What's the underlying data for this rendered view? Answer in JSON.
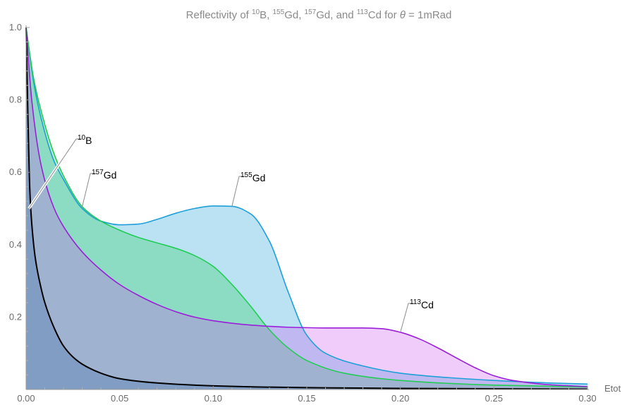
{
  "chart_data": {
    "type": "area",
    "title": {
      "prefix": "Reflectivity of ",
      "b_iso": "10",
      "b_el": "B, ",
      "gd155_iso": "155",
      "gd155_el": "Gd, ",
      "gd157_iso": "157",
      "gd157_el": "Gd, and ",
      "cd_iso": "113",
      "cd_el": "Cd for ",
      "theta": "θ",
      "suffix": " = 1mRad"
    },
    "xlabel": "Etot",
    "ylabel": "",
    "xlim": [
      0,
      0.3
    ],
    "ylim": [
      0,
      1.0
    ],
    "x_ticks": [
      "0.00",
      "0.05",
      "0.10",
      "0.15",
      "0.20",
      "0.25",
      "0.30"
    ],
    "x_tick_values": [
      0,
      0.05,
      0.1,
      0.15,
      0.2,
      0.25,
      0.3
    ],
    "y_ticks": [
      "0.2",
      "0.4",
      "0.6",
      "0.8",
      "1.0"
    ],
    "y_tick_values": [
      0.2,
      0.4,
      0.6,
      0.8,
      1.0
    ],
    "fill_opacity": 0.3,
    "series": [
      {
        "key": "gd155",
        "iso": "155",
        "el": "Gd",
        "color": "#1e9fd7",
        "fill": "#1e9fd7",
        "label_at": [
          0.11,
          0.506
        ],
        "points": [
          [
            0,
            1.0
          ],
          [
            0.004,
            0.85
          ],
          [
            0.008,
            0.75
          ],
          [
            0.015,
            0.63
          ],
          [
            0.02,
            0.58
          ],
          [
            0.03,
            0.5
          ],
          [
            0.04,
            0.465
          ],
          [
            0.05,
            0.455
          ],
          [
            0.06,
            0.457
          ],
          [
            0.07,
            0.47
          ],
          [
            0.08,
            0.487
          ],
          [
            0.09,
            0.5
          ],
          [
            0.1,
            0.507
          ],
          [
            0.11,
            0.506
          ],
          [
            0.12,
            0.485
          ],
          [
            0.13,
            0.41
          ],
          [
            0.14,
            0.27
          ],
          [
            0.15,
            0.15
          ],
          [
            0.16,
            0.1
          ],
          [
            0.18,
            0.065
          ],
          [
            0.2,
            0.045
          ],
          [
            0.22,
            0.035
          ],
          [
            0.25,
            0.025
          ],
          [
            0.28,
            0.018
          ],
          [
            0.3,
            0.015
          ]
        ]
      },
      {
        "key": "gd157",
        "iso": "157",
        "el": "Gd",
        "color": "#22cc55",
        "fill": "#22cc55",
        "label_at": [
          0.03,
          0.505
        ],
        "points": [
          [
            0,
            1.0
          ],
          [
            0.004,
            0.86
          ],
          [
            0.008,
            0.77
          ],
          [
            0.015,
            0.65
          ],
          [
            0.02,
            0.59
          ],
          [
            0.03,
            0.505
          ],
          [
            0.04,
            0.465
          ],
          [
            0.05,
            0.44
          ],
          [
            0.06,
            0.42
          ],
          [
            0.07,
            0.405
          ],
          [
            0.08,
            0.39
          ],
          [
            0.09,
            0.37
          ],
          [
            0.1,
            0.34
          ],
          [
            0.11,
            0.29
          ],
          [
            0.12,
            0.23
          ],
          [
            0.13,
            0.165
          ],
          [
            0.14,
            0.115
          ],
          [
            0.15,
            0.08
          ],
          [
            0.17,
            0.045
          ],
          [
            0.2,
            0.025
          ],
          [
            0.25,
            0.012
          ],
          [
            0.3,
            0.007
          ]
        ]
      },
      {
        "key": "cd113",
        "iso": "113",
        "el": "Cd",
        "color": "#9a1ed8",
        "fill": "#cc55ee",
        "label_at": [
          0.2,
          0.158
        ],
        "points": [
          [
            0,
            1.0
          ],
          [
            0.003,
            0.8
          ],
          [
            0.008,
            0.62
          ],
          [
            0.015,
            0.5
          ],
          [
            0.02,
            0.45
          ],
          [
            0.03,
            0.38
          ],
          [
            0.04,
            0.33
          ],
          [
            0.05,
            0.29
          ],
          [
            0.06,
            0.26
          ],
          [
            0.07,
            0.235
          ],
          [
            0.08,
            0.215
          ],
          [
            0.09,
            0.2
          ],
          [
            0.1,
            0.19
          ],
          [
            0.12,
            0.178
          ],
          [
            0.14,
            0.172
          ],
          [
            0.16,
            0.17
          ],
          [
            0.18,
            0.17
          ],
          [
            0.19,
            0.168
          ],
          [
            0.2,
            0.158
          ],
          [
            0.21,
            0.14
          ],
          [
            0.22,
            0.115
          ],
          [
            0.23,
            0.087
          ],
          [
            0.24,
            0.06
          ],
          [
            0.25,
            0.038
          ],
          [
            0.26,
            0.025
          ],
          [
            0.28,
            0.013
          ],
          [
            0.3,
            0.008
          ]
        ]
      },
      {
        "key": "b10",
        "iso": "10",
        "el": "B",
        "color": "#000000",
        "fill": "#3a6aaa",
        "label_at": [
          0.0015,
          0.5
        ],
        "points": [
          [
            0,
            1.0
          ],
          [
            0.001,
            0.75
          ],
          [
            0.002,
            0.55
          ],
          [
            0.003,
            0.46
          ],
          [
            0.005,
            0.36
          ],
          [
            0.008,
            0.28
          ],
          [
            0.01,
            0.24
          ],
          [
            0.015,
            0.17
          ],
          [
            0.02,
            0.12
          ],
          [
            0.025,
            0.09
          ],
          [
            0.03,
            0.07
          ],
          [
            0.04,
            0.045
          ],
          [
            0.05,
            0.03
          ],
          [
            0.07,
            0.018
          ],
          [
            0.1,
            0.01
          ],
          [
            0.15,
            0.005
          ],
          [
            0.2,
            0.003
          ],
          [
            0.3,
            0.001
          ]
        ]
      }
    ]
  }
}
